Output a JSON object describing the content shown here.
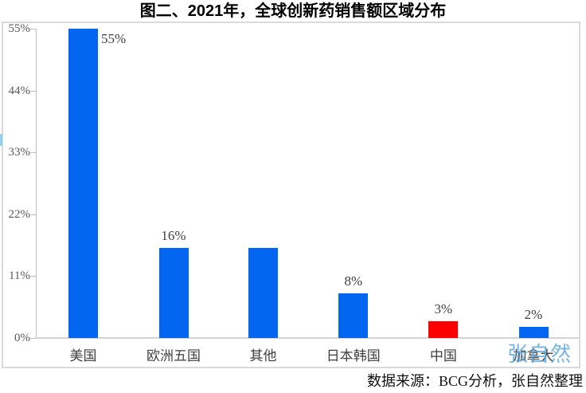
{
  "title": "图二、2021年，全球创新药销售额区域分布",
  "source_note": "数据来源：BCG分析，张自然整理",
  "watermark_text": "张自然",
  "colors": {
    "bar_blue": "#0366F0",
    "bar_red": "#FD0002",
    "frame_border": "#DADADA",
    "axis_line": "#BFBFBF",
    "tick_label_color": "#595959",
    "data_label_color": "#3F3F3F",
    "watermark_color": "#5BA8DF"
  },
  "chart_data": {
    "type": "bar",
    "title": "图二、2021年，全球创新药销售额区域分布",
    "categories": [
      "美国",
      "欧洲五国",
      "其他",
      "日本韩国",
      "中国",
      "加拿大"
    ],
    "values": [
      55,
      16,
      16,
      8,
      3,
      2
    ],
    "data_labels": [
      "55%",
      "16%",
      "",
      "8%",
      "3%",
      "2%"
    ],
    "bar_color_keys": [
      "bar_blue",
      "bar_blue",
      "bar_blue",
      "bar_blue",
      "bar_red",
      "bar_blue"
    ],
    "semantic_names": [
      "usa",
      "europe-five",
      "others",
      "japan-korea",
      "china",
      "canada"
    ],
    "xlabel": "",
    "ylabel": "",
    "ylim": [
      0,
      55
    ],
    "ytick_values": [
      0,
      11,
      22,
      33,
      44,
      55
    ],
    "ytick_labels": [
      "0%",
      "11%",
      "22%",
      "33%",
      "44%",
      "55%"
    ],
    "grid": false,
    "legend": "none"
  }
}
